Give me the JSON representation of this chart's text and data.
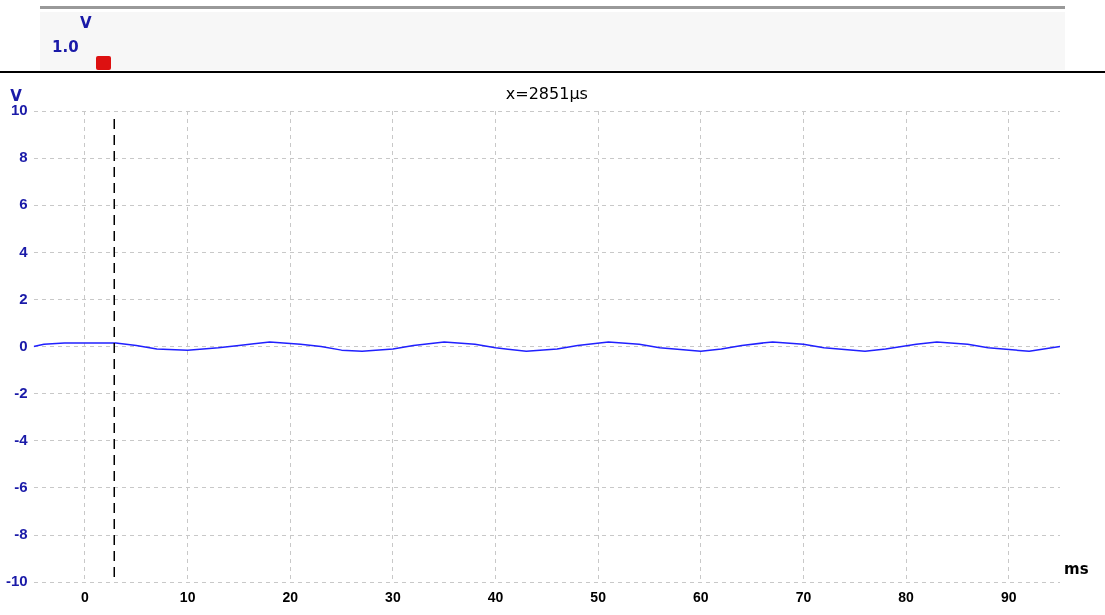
{
  "chart_data": {
    "type": "line",
    "title": "x=2851µs",
    "xlabel": "ms",
    "ylabel": "V",
    "annotations": [
      "V",
      "1.0"
    ],
    "x": [
      -5,
      -4,
      -2,
      3,
      5,
      7,
      10,
      13,
      15,
      18,
      21,
      23,
      25,
      27,
      30,
      32,
      35,
      38,
      40,
      43,
      46,
      48,
      51,
      54,
      56,
      60,
      62,
      64,
      67,
      70,
      72,
      76,
      78,
      81,
      83,
      86,
      88,
      92,
      95
    ],
    "series": [
      {
        "color": "#2020ff",
        "values": [
          0,
          0.1,
          0.15,
          0.15,
          0.05,
          -0.1,
          -0.15,
          -0.05,
          0.05,
          0.2,
          0.1,
          0,
          -0.15,
          -0.2,
          -0.1,
          0.05,
          0.2,
          0.1,
          -0.05,
          -0.2,
          -0.1,
          0.05,
          0.2,
          0.1,
          -0.05,
          -0.2,
          -0.1,
          0.05,
          0.2,
          0.1,
          -0.05,
          -0.2,
          -0.1,
          0.1,
          0.2,
          0.1,
          -0.05,
          -0.2,
          0
        ]
      }
    ],
    "xlim": [
      -5,
      95
    ],
    "ylim": [
      -10,
      10
    ],
    "xticks": [
      0,
      10,
      20,
      30,
      40,
      50,
      60,
      70,
      80,
      90
    ],
    "yticks": [
      -10,
      -8,
      -6,
      -4,
      -2,
      0,
      2,
      4,
      6,
      8,
      10
    ],
    "grid": true,
    "ref_lines": [
      {
        "axis": "x",
        "value": 2.851,
        "color": "#000000",
        "line_style": "dashed"
      }
    ]
  }
}
